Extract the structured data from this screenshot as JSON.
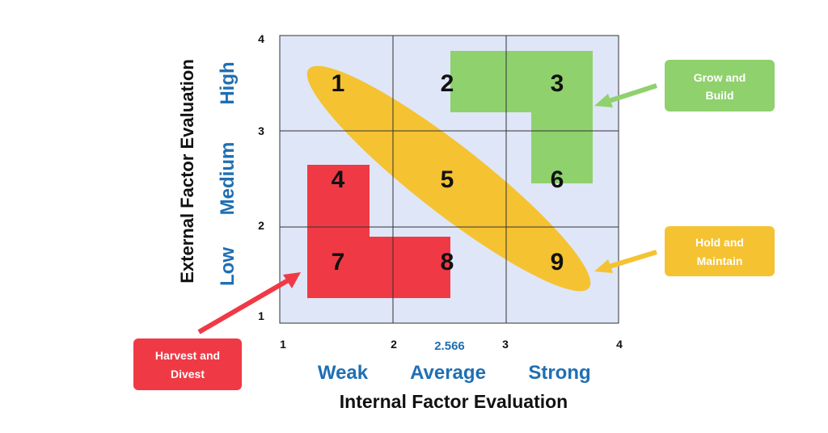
{
  "cells": [
    "1",
    "2",
    "3",
    "4",
    "5",
    "6",
    "7",
    "8",
    "9"
  ],
  "x_ticks": [
    "1",
    "2",
    "3",
    "4"
  ],
  "y_ticks": [
    "4",
    "3",
    "2",
    "1"
  ],
  "x_marker": "2.566",
  "x_categories": [
    "Weak",
    "Average",
    "Strong"
  ],
  "y_categories": [
    "High",
    "Medium",
    "Low"
  ],
  "x_axis_title": "Internal Factor Evaluation",
  "y_axis_title": "External Factor Evaluation",
  "callouts": {
    "grow": [
      "Grow and",
      "Build"
    ],
    "hold": [
      "Hold and",
      "Maintain"
    ],
    "harvest": [
      "Harvest and",
      "Divest"
    ]
  },
  "colors": {
    "grid_bg": "#dfe6f7",
    "grow": "#8fd16d",
    "hold": "#f5c232",
    "harvest": "#ef3a45",
    "label_blue": "#1f6fb3"
  }
}
